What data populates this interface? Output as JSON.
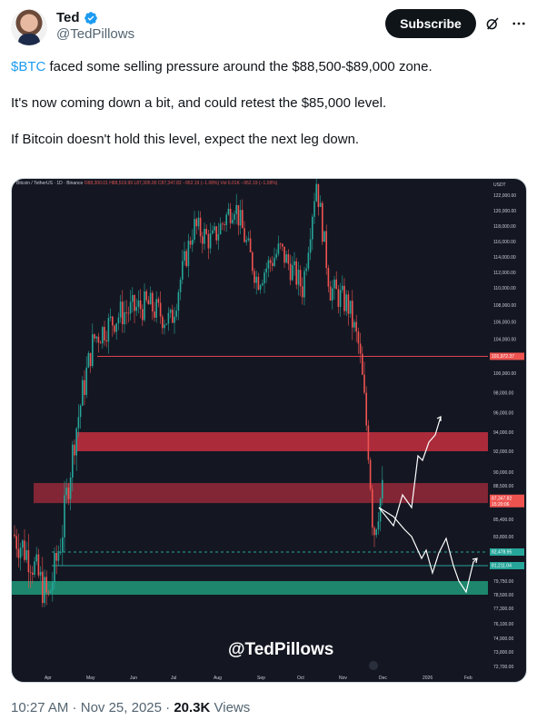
{
  "author": {
    "display_name": "Ted",
    "handle": "@TedPillows",
    "verified": true
  },
  "actions": {
    "subscribe_label": "Subscribe",
    "grok_icon": "grok-icon",
    "more_icon": "more-icon"
  },
  "tweet": {
    "cashtag": "$BTC",
    "line1_rest": " faced some selling pressure around the $88,500-$89,000 zone.",
    "line2": "It's now coming down a bit, and could retest the $85,000 level.",
    "line3": "If Bitcoin doesn't hold this level, expect the next leg down."
  },
  "chart_image": {
    "header_title": "Bitcoin / TetherUS · 1D · Binance",
    "header_ohlc": "O88,300.01 H88,519.99 L87,305.00 C87,347.82 −952.19 (−1.08%) Vol 6.01K −952.19 (−1.08%)",
    "watermark": "@TedPillows",
    "colors": {
      "background": "#141722",
      "up_candle": "#26a69a",
      "down_candle": "#ef5350",
      "resistance_zone": "#c62f3f",
      "support_zone": "#1e9a7a",
      "resistance_line": "#e04050",
      "support_line": "#26a69a"
    },
    "chart_data": {
      "type": "candlestick",
      "symbol": "BTCUSDT",
      "exchange": "Binance",
      "interval": "1D",
      "y_axis_unit": "USDT",
      "y_axis_ticks": [
        "122,000.00",
        "120,000.00",
        "118,000.00",
        "116,000.00",
        "114,000.00",
        "112,000.00",
        "110,000.00",
        "108,000.00",
        "106,000.00",
        "104,000.00",
        "101,972.37",
        "100,000.00",
        "98,000.00",
        "96,000.00",
        "94,000.00",
        "92,000.00",
        "90,000.00",
        "88,500.00",
        "87,347.82",
        "15:20:06",
        "85,400.00",
        "83,800.00",
        "82,478.95",
        "81,211.04",
        "79,750.00",
        "78,500.00",
        "77,300.00",
        "76,100.00",
        "74,900.00",
        "73,800.00",
        "72,700.00"
      ],
      "x_axis_labels": [
        "Apr",
        "May",
        "Jun",
        "Jul",
        "Aug",
        "Sep",
        "Oct",
        "Nov",
        "Dec",
        "2026",
        "Feb"
      ],
      "current_price": 87347.82,
      "countdown": "15:20:06",
      "horizontal_lines": [
        {
          "price": 101972.37,
          "style": "solid",
          "color": "red"
        },
        {
          "price": 82478.95,
          "style": "dashed",
          "color": "teal"
        },
        {
          "price": 81211.04,
          "style": "solid",
          "color": "teal"
        }
      ],
      "zones": [
        {
          "from": 92000,
          "to": 94000,
          "color": "red"
        },
        {
          "from": 86900,
          "to": 88800,
          "color": "red"
        },
        {
          "from": 78500,
          "to": 79750,
          "color": "teal"
        }
      ],
      "projected_paths": [
        {
          "color": "white",
          "direction": "up",
          "points": [
            [
              88000,
              "Nov 28"
            ],
            [
              86200,
              "Dec 2"
            ],
            [
              88400,
              "Dec 6"
            ],
            [
              86900,
              "Dec 9"
            ],
            [
              92000,
              "Dec 14"
            ],
            [
              93600,
              "Dec 17"
            ],
            [
              95000,
              "Dec 20"
            ]
          ]
        },
        {
          "color": "white",
          "direction": "down",
          "points": [
            [
              88000,
              "Nov 28"
            ],
            [
              86300,
              "Dec 2"
            ],
            [
              85400,
              "Dec 6"
            ],
            [
              83800,
              "Dec 9"
            ],
            [
              82300,
              "Dec 13"
            ],
            [
              83800,
              "Dec 17"
            ],
            [
              81000,
              "Dec 20"
            ],
            [
              78700,
              "Dec 24"
            ],
            [
              81000,
              "Dec 28"
            ]
          ]
        }
      ]
    }
  },
  "footer": {
    "time": "10:27 AM",
    "separator": " · ",
    "date": "Nov 25, 2025",
    "separator2": " · ",
    "views_count": "20.3K",
    "views_label": " Views"
  }
}
